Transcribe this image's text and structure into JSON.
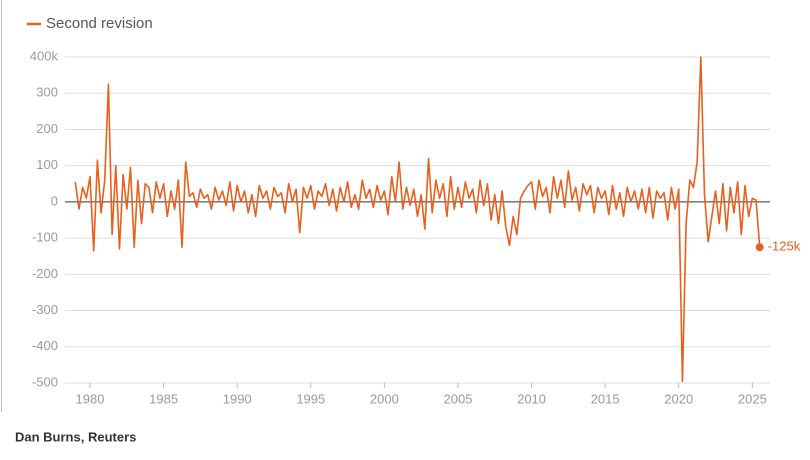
{
  "chart_data": {
    "type": "line",
    "legend_position": "top-left",
    "grid": true,
    "xlim": [
      1978.3,
      2026.2
    ],
    "xticks": [
      1980,
      1985,
      1990,
      1995,
      2000,
      2005,
      2010,
      2015,
      2020,
      2025
    ],
    "ylim": [
      -500,
      400
    ],
    "yticks": [
      -500,
      -400,
      -300,
      -200,
      -100,
      0,
      100,
      200,
      300,
      {
        "value": 400,
        "label": "400k"
      }
    ],
    "x": [
      1979,
      1979.25,
      1979.5,
      1979.75,
      1980,
      1980.25,
      1980.5,
      1980.75,
      1981,
      1981.25,
      1981.5,
      1981.75,
      1982,
      1982.25,
      1982.5,
      1982.75,
      1983,
      1983.25,
      1983.5,
      1983.75,
      1984,
      1984.25,
      1984.5,
      1984.75,
      1985,
      1985.25,
      1985.5,
      1985.75,
      1986,
      1986.25,
      1986.5,
      1986.75,
      1987,
      1987.25,
      1987.5,
      1987.75,
      1988,
      1988.25,
      1988.5,
      1988.75,
      1989,
      1989.25,
      1989.5,
      1989.75,
      1990,
      1990.25,
      1990.5,
      1990.75,
      1991,
      1991.25,
      1991.5,
      1991.75,
      1992,
      1992.25,
      1992.5,
      1992.75,
      1993,
      1993.25,
      1993.5,
      1993.75,
      1994,
      1994.25,
      1994.5,
      1994.75,
      1995,
      1995.25,
      1995.5,
      1995.75,
      1996,
      1996.25,
      1996.5,
      1996.75,
      1997,
      1997.25,
      1997.5,
      1997.75,
      1998,
      1998.25,
      1998.5,
      1998.75,
      1999,
      1999.25,
      1999.5,
      1999.75,
      2000,
      2000.25,
      2000.5,
      2000.75,
      2001,
      2001.25,
      2001.5,
      2001.75,
      2002,
      2002.25,
      2002.5,
      2002.75,
      2003,
      2003.25,
      2003.5,
      2003.75,
      2004,
      2004.25,
      2004.5,
      2004.75,
      2005,
      2005.25,
      2005.5,
      2005.75,
      2006,
      2006.25,
      2006.5,
      2006.75,
      2007,
      2007.25,
      2007.5,
      2007.75,
      2008,
      2008.25,
      2008.5,
      2008.75,
      2009,
      2009.25,
      2009.5,
      2009.75,
      2010,
      2010.25,
      2010.5,
      2010.75,
      2011,
      2011.25,
      2011.5,
      2011.75,
      2012,
      2012.25,
      2012.5,
      2012.75,
      2013,
      2013.25,
      2013.5,
      2013.75,
      2014,
      2014.25,
      2014.5,
      2014.75,
      2015,
      2015.25,
      2015.5,
      2015.75,
      2016,
      2016.25,
      2016.5,
      2016.75,
      2017,
      2017.25,
      2017.5,
      2017.75,
      2018,
      2018.25,
      2018.5,
      2018.75,
      2019,
      2019.25,
      2019.5,
      2019.75,
      2020,
      2020.25,
      2020.5,
      2020.75,
      2021,
      2021.25,
      2021.5,
      2021.75,
      2022,
      2022.25,
      2022.5,
      2022.75,
      2023,
      2023.25,
      2023.5,
      2023.75,
      2024,
      2024.25,
      2024.5,
      2024.75,
      2025,
      2025.25,
      2025.5
    ],
    "series": [
      {
        "name": "Second revision",
        "color": "#e8601c",
        "values": [
          55,
          -20,
          40,
          10,
          70,
          -135,
          115,
          -30,
          60,
          325,
          -90,
          100,
          -130,
          75,
          -20,
          95,
          -125,
          60,
          -60,
          50,
          40,
          -30,
          55,
          10,
          50,
          -40,
          30,
          -20,
          60,
          -125,
          110,
          15,
          25,
          -15,
          35,
          10,
          20,
          -20,
          40,
          5,
          30,
          -10,
          55,
          -25,
          45,
          0,
          30,
          -30,
          20,
          -40,
          45,
          10,
          30,
          -20,
          40,
          15,
          25,
          -30,
          50,
          0,
          35,
          -85,
          40,
          10,
          45,
          -20,
          30,
          15,
          50,
          -10,
          35,
          -25,
          40,
          0,
          55,
          -15,
          20,
          -20,
          60,
          10,
          35,
          -15,
          45,
          5,
          30,
          -35,
          70,
          0,
          110,
          -20,
          40,
          -10,
          35,
          -40,
          20,
          -75,
          120,
          -30,
          60,
          10,
          50,
          -40,
          70,
          -20,
          40,
          -15,
          55,
          10,
          35,
          -30,
          60,
          -10,
          50,
          -50,
          20,
          -60,
          30,
          -70,
          -120,
          -40,
          -90,
          10,
          30,
          45,
          55,
          -20,
          60,
          15,
          40,
          -30,
          70,
          10,
          60,
          -15,
          85,
          5,
          40,
          -25,
          50,
          20,
          45,
          -30,
          40,
          10,
          30,
          -35,
          45,
          -20,
          25,
          -40,
          40,
          0,
          30,
          -20,
          35,
          -30,
          40,
          -45,
          30,
          10,
          25,
          -50,
          40,
          -20,
          35,
          -495,
          -60,
          60,
          40,
          110,
          400,
          20,
          -110,
          -40,
          30,
          -60,
          50,
          -80,
          40,
          -30,
          55,
          -90,
          45,
          -40,
          10,
          5,
          -125
        ]
      }
    ],
    "annotation": "-125k",
    "source": "Dan Burns, Reuters"
  }
}
